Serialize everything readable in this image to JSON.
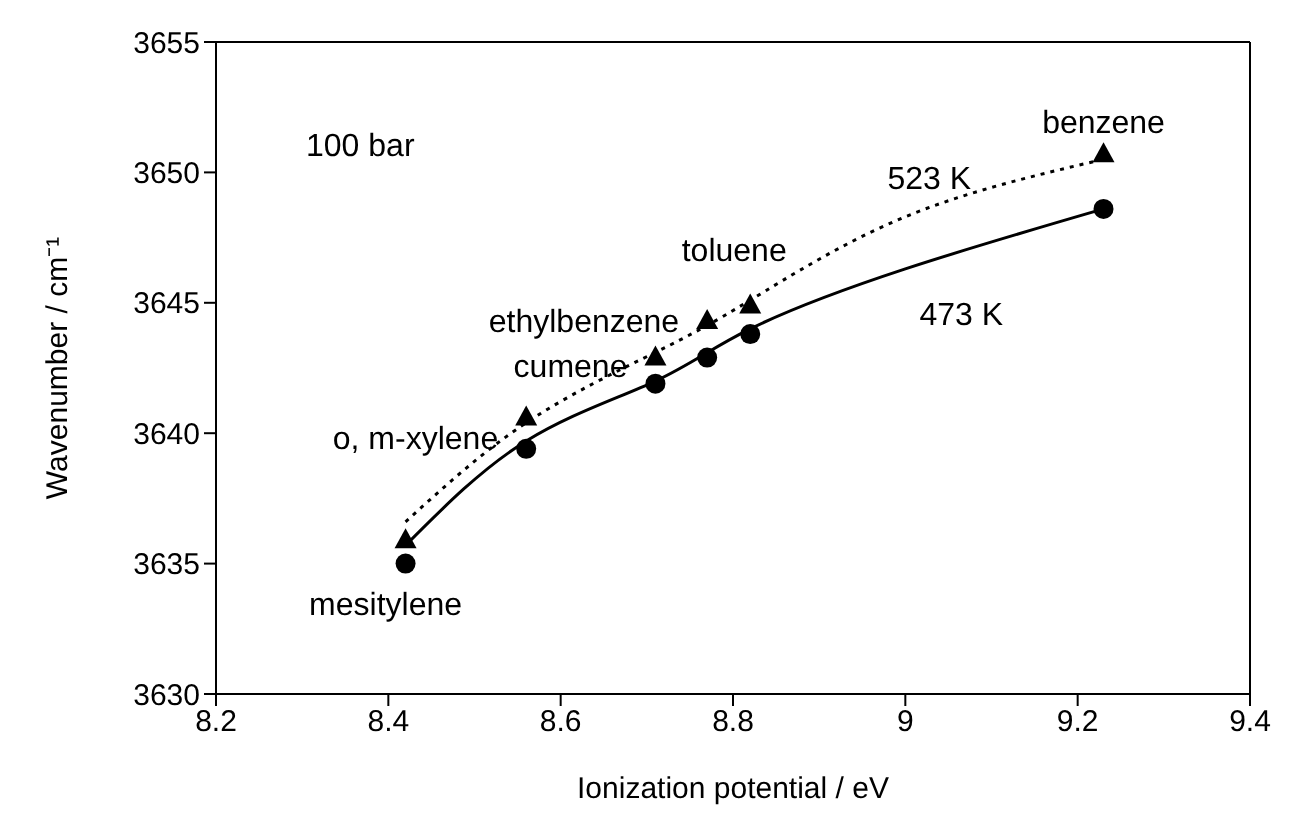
{
  "chart_data": {
    "type": "scatter",
    "xlabel": "Ionization potential / eV",
    "ylabel": "Wavenumber / cm⁻¹",
    "xlim": [
      8.2,
      9.4
    ],
    "xticks": [
      8.2,
      8.4,
      8.6,
      8.8,
      9,
      9.2,
      9.4
    ],
    "ylim": [
      3630,
      3655
    ],
    "yticks": [
      3630,
      3635,
      3640,
      3645,
      3650,
      3655
    ],
    "series": [
      {
        "marker": "circle",
        "color": "#000000",
        "x": [
          8.42,
          8.56,
          8.71,
          8.77,
          8.82,
          9.23
        ],
        "values": [
          3635.0,
          3639.4,
          3641.9,
          3642.9,
          3643.8,
          3648.6
        ]
      },
      {
        "marker": "triangle",
        "color": "#000000",
        "x": [
          8.42,
          8.56,
          8.71,
          8.77,
          8.82,
          9.23
        ],
        "values": [
          3635.9,
          3640.6,
          3642.9,
          3644.3,
          3644.9,
          3650.7
        ]
      },
      {
        "type": "line",
        "name": "473 K",
        "marker": "none",
        "line_style": "solid",
        "color": "#000000",
        "x": [
          8.42,
          8.56,
          8.71,
          8.82,
          9.0,
          9.23
        ],
        "values": [
          3635.7,
          3639.7,
          3642.0,
          3644.0,
          3646.3,
          3648.6
        ]
      },
      {
        "type": "line",
        "name": "523 K",
        "marker": "none",
        "line_style": "dotted",
        "color": "#000000",
        "x": [
          8.42,
          8.56,
          8.71,
          8.82,
          9.0,
          9.23
        ],
        "values": [
          3636.6,
          3640.4,
          3643.1,
          3645.1,
          3648.3,
          3650.5
        ]
      }
    ],
    "annotations": [
      "100 bar",
      {
        "text": "benzene",
        "x": 9.23,
        "y": 3650.7
      },
      {
        "text": "toluene",
        "x": 8.82,
        "y": 3644.9
      },
      {
        "text": "ethylbenzene",
        "x": 8.77,
        "y": 3644.3
      },
      {
        "text": "cumene",
        "x": 8.71,
        "y": 3642.9
      },
      {
        "text": "o, m-xylene",
        "x": 8.56,
        "y": 3640.6
      },
      {
        "text": "mesitylene",
        "x": 8.42,
        "y": 3635.0
      }
    ]
  }
}
